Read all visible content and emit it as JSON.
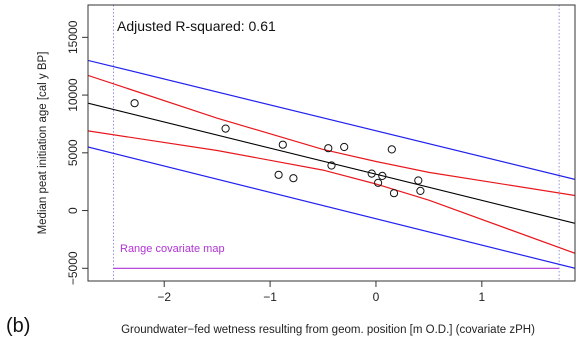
{
  "chart_data": {
    "type": "scatter",
    "panel_label": "(b)",
    "xlabel": "Groundwater−fed wetness resulting from geom. position [m O.D.] (covariate zPH)",
    "ylabel": "Median peat initiation age [cal y BP]",
    "annotation": "Adjusted R-squared: 0.61",
    "range_label": "Range covariate map",
    "xlim": [
      -2.72,
      1.88
    ],
    "ylim": [
      -6100,
      17800
    ],
    "x_ticks": [
      -2,
      -1,
      0,
      1
    ],
    "x_tick_labels": [
      "−2",
      "−1",
      "0",
      "1"
    ],
    "y_ticks": [
      -5000,
      0,
      5000,
      10000,
      15000
    ],
    "y_tick_labels": [
      "−5000",
      "0",
      "5000",
      "10000",
      "15000"
    ],
    "points": [
      {
        "x": -2.28,
        "y": 9300
      },
      {
        "x": -1.42,
        "y": 7100
      },
      {
        "x": -0.88,
        "y": 5700
      },
      {
        "x": -0.92,
        "y": 3100
      },
      {
        "x": -0.78,
        "y": 2800
      },
      {
        "x": -0.45,
        "y": 5400
      },
      {
        "x": -0.42,
        "y": 3900
      },
      {
        "x": -0.3,
        "y": 5500
      },
      {
        "x": -0.04,
        "y": 3200
      },
      {
        "x": 0.02,
        "y": 2400
      },
      {
        "x": 0.06,
        "y": 3000
      },
      {
        "x": 0.15,
        "y": 5300
      },
      {
        "x": 0.17,
        "y": 1500
      },
      {
        "x": 0.4,
        "y": 2600
      },
      {
        "x": 0.42,
        "y": 1700
      }
    ],
    "fit_line": {
      "x": [
        -2.72,
        1.88
      ],
      "y": [
        9300,
        -1100
      ],
      "color": "#000000"
    },
    "confidence_band": {
      "color": "#e8181d",
      "upper": {
        "x": [
          -2.72,
          -1.5,
          -0.5,
          0,
          0.5,
          1.88
        ],
        "y": [
          11700,
          8000,
          5300,
          4250,
          3300,
          1300
        ]
      },
      "lower": {
        "x": [
          -2.72,
          -1.5,
          -0.5,
          0,
          0.5,
          1.88
        ],
        "y": [
          6900,
          5200,
          3500,
          2300,
          900,
          -3700
        ]
      }
    },
    "prediction_band": {
      "color": "#2222ee",
      "upper": {
        "x": [
          -2.72,
          1.88
        ],
        "y": [
          13000,
          2700
        ]
      },
      "lower": {
        "x": [
          -2.72,
          1.88
        ],
        "y": [
          5500,
          -5000
        ]
      }
    },
    "covariate_range": {
      "x": [
        -2.48,
        1.73
      ],
      "y": -5000,
      "color": "#b033d6"
    },
    "grid": false
  }
}
